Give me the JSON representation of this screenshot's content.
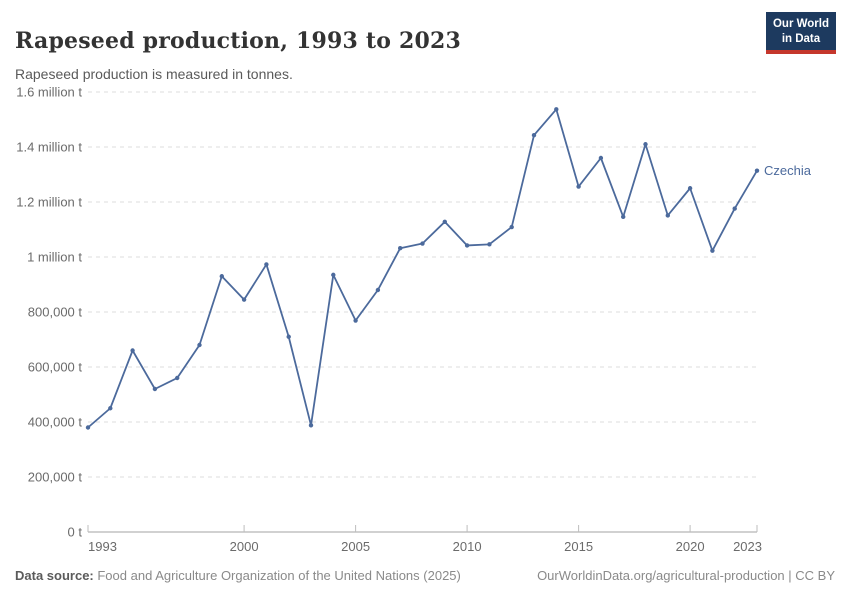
{
  "header": {
    "title": "Rapeseed production, 1993 to 2023",
    "subtitle": "Rapeseed production is measured in tonnes.",
    "logo_line1": "Our World",
    "logo_line2": "in Data"
  },
  "chart_data": {
    "type": "line",
    "title": "Rapeseed production, 1993 to 2023",
    "ylabel": "",
    "xlabel": "",
    "unit": "tonnes",
    "grid": "dashed-horizontal",
    "legend_position": "end-of-line-label",
    "ylim": [
      0,
      1600000
    ],
    "xlim": [
      1993,
      2023
    ],
    "x_ticks": [
      1993,
      2000,
      2005,
      2010,
      2015,
      2020,
      2023
    ],
    "y_ticks": [
      {
        "value": 0,
        "label": "0 t"
      },
      {
        "value": 200000,
        "label": "200,000 t"
      },
      {
        "value": 400000,
        "label": "400,000 t"
      },
      {
        "value": 600000,
        "label": "600,000 t"
      },
      {
        "value": 800000,
        "label": "800,000 t"
      },
      {
        "value": 1000000,
        "label": "1 million t"
      },
      {
        "value": 1200000,
        "label": "1.2 million t"
      },
      {
        "value": 1400000,
        "label": "1.4 million t"
      },
      {
        "value": 1600000,
        "label": "1.6 million t"
      }
    ],
    "series": [
      {
        "name": "Czechia",
        "color": "#4C6A9C",
        "x": [
          1993,
          1994,
          1995,
          1996,
          1997,
          1998,
          1999,
          2000,
          2001,
          2002,
          2003,
          2004,
          2005,
          2006,
          2007,
          2008,
          2009,
          2010,
          2011,
          2012,
          2013,
          2014,
          2015,
          2016,
          2017,
          2018,
          2019,
          2020,
          2021,
          2022,
          2023
        ],
        "values": [
          380000,
          450000,
          660000,
          520000,
          560000,
          680000,
          930000,
          845000,
          973000,
          710000,
          388000,
          935000,
          769000,
          880000,
          1032000,
          1049000,
          1128000,
          1042000,
          1046000,
          1109000,
          1443000,
          1537000,
          1256000,
          1360000,
          1146000,
          1410000,
          1151000,
          1250000,
          1023000,
          1176000,
          1314000
        ]
      }
    ]
  },
  "footer": {
    "source_label": "Data source:",
    "source_text": " Food and Agriculture Organization of the United Nations (2025)",
    "attribution": "OurWorldinData.org/agricultural-production | CC BY"
  },
  "colors": {
    "line": "#4C6A9C",
    "gridline": "#dedede",
    "axis": "#a3a3a3",
    "tick": "#bdbdbd",
    "tick_label": "#6b6b6b",
    "logo_bg": "#1d3a5f",
    "logo_red": "#c5372c"
  }
}
